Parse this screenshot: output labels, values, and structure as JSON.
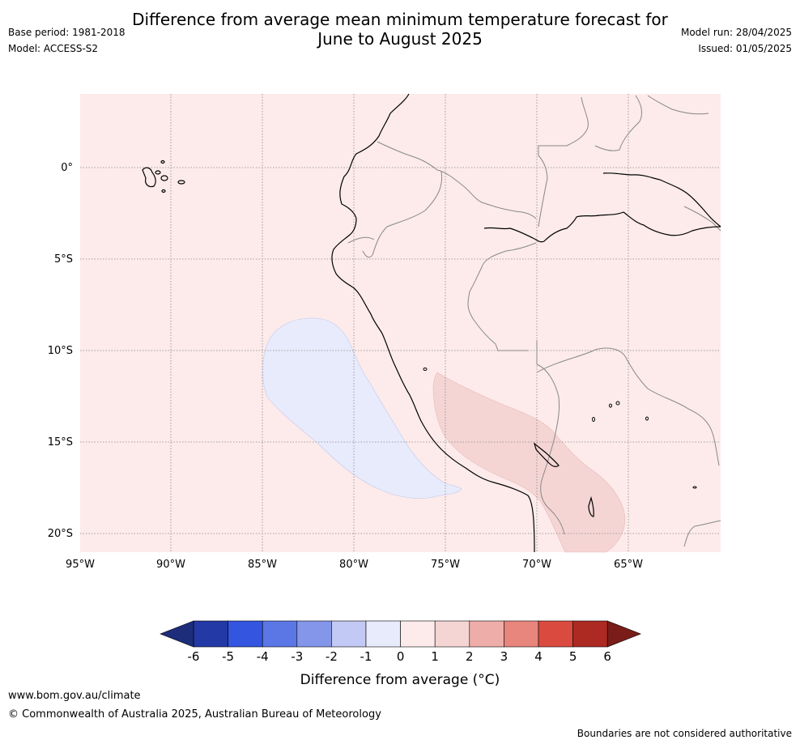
{
  "title": "Difference from average mean minimum temperature forecast for\nJune to August 2025",
  "title_line1": "Difference from average mean minimum temperature forecast for",
  "title_line2": "June to August 2025",
  "base_period": "Base period: 1981-2018",
  "model": "Model: ACCESS-S2",
  "model_run": "Model run: 28/04/2025",
  "issued": "Issued: 01/05/2025",
  "map": {
    "lon_ticks": [
      "95°W",
      "90°W",
      "85°W",
      "80°W",
      "75°W",
      "70°W",
      "65°W"
    ],
    "lat_ticks": [
      "0°",
      "5°S",
      "10°S",
      "15°S",
      "20°S"
    ],
    "gridlines": true
  },
  "colorbar": {
    "label": "Difference from average (°C)",
    "ticks": [
      "-6",
      "-5",
      "-4",
      "-3",
      "-2",
      "-1",
      "0",
      "1",
      "2",
      "3",
      "4",
      "5",
      "6"
    ],
    "colors": [
      "#2339a6",
      "#3355e0",
      "#5b77e6",
      "#8496ea",
      "#c2c9f4",
      "#e8ebfb",
      "#fcebea",
      "#f4d5d4",
      "#efada9",
      "#e8857c",
      "#db4a3f",
      "#ad2a23"
    ],
    "under_color": "#1d2d7a",
    "over_color": "#7a1d18"
  },
  "footer": {
    "url": "www.bom.gov.au/climate",
    "copyright": "© Commonwealth of Australia 2025, Australian Bureau of Meteorology",
    "disclaimer": "Boundaries are not considered authoritative"
  }
}
